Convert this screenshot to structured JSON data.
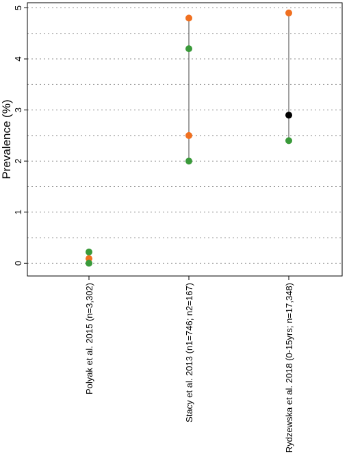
{
  "chart_data": {
    "type": "scatter",
    "title": "",
    "xlabel": "",
    "ylabel": "Prevalence (%)",
    "ylim": [
      -0.25,
      5.1
    ],
    "yticks": [
      0,
      1,
      2,
      3,
      4,
      5
    ],
    "grid": {
      "horizontal": true,
      "style": "dotted",
      "step": 0.5
    },
    "categories": [
      "Polyak et al. 2015 (n=3,302)",
      "Stacy et al. 2013 (n1=746; n2=167)",
      "Rydzewska et al. 2018 (0-15yrs; n=17,348)"
    ],
    "groups": [
      {
        "category": "Polyak et al. 2015 (n=3,302)",
        "range": null,
        "points": [
          {
            "value": 0.22,
            "color": "#3a9a3a"
          },
          {
            "value": 0.09,
            "color": "#f07020"
          },
          {
            "value": 0.0,
            "color": "#3a9a3a"
          }
        ]
      },
      {
        "category": "Stacy et al. 2013 (n1=746; n2=167)",
        "range": [
          2.0,
          4.8
        ],
        "points": [
          {
            "value": 4.8,
            "color": "#f07020"
          },
          {
            "value": 4.2,
            "color": "#3a9a3a"
          },
          {
            "value": 2.5,
            "color": "#f07020"
          },
          {
            "value": 2.0,
            "color": "#3a9a3a"
          }
        ]
      },
      {
        "category": "Rydzewska et al. 2018 (0-15yrs; n=17,348)",
        "range": [
          2.4,
          4.9
        ],
        "points": [
          {
            "value": 4.9,
            "color": "#f07020"
          },
          {
            "value": 2.9,
            "color": "#000000"
          },
          {
            "value": 2.4,
            "color": "#3a9a3a"
          }
        ]
      }
    ]
  }
}
